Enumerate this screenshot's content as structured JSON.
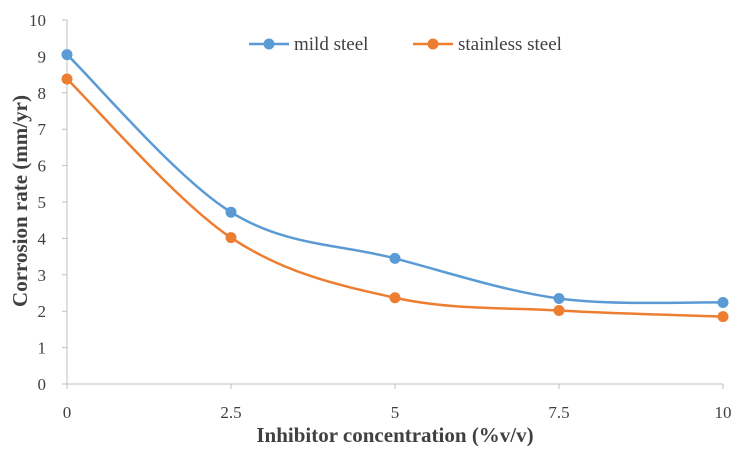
{
  "chart_data": {
    "type": "line",
    "smooth": true,
    "title": "",
    "xlabel": "Inhibitor concentration (%v/v)",
    "ylabel": "Corrosion rate (mm/yr)",
    "x": [
      0,
      2.5,
      5,
      7.5,
      10
    ],
    "x_ticks": [
      "0",
      "2.5",
      "5",
      "7.5",
      "10"
    ],
    "y_ticks": [
      "0",
      "1",
      "2",
      "3",
      "4",
      "5",
      "6",
      "7",
      "8",
      "9",
      "10"
    ],
    "xlim": [
      0,
      10
    ],
    "ylim": [
      0,
      10
    ],
    "grid": false,
    "legend_position": "top-center",
    "series": [
      {
        "name": "mild steel",
        "color": "#5b9bd5",
        "values": [
          9.05,
          4.72,
          3.45,
          2.35,
          2.24
        ]
      },
      {
        "name": "stainless steel",
        "color": "#ed7d31",
        "values": [
          8.38,
          4.02,
          2.37,
          2.02,
          1.85
        ]
      }
    ]
  }
}
